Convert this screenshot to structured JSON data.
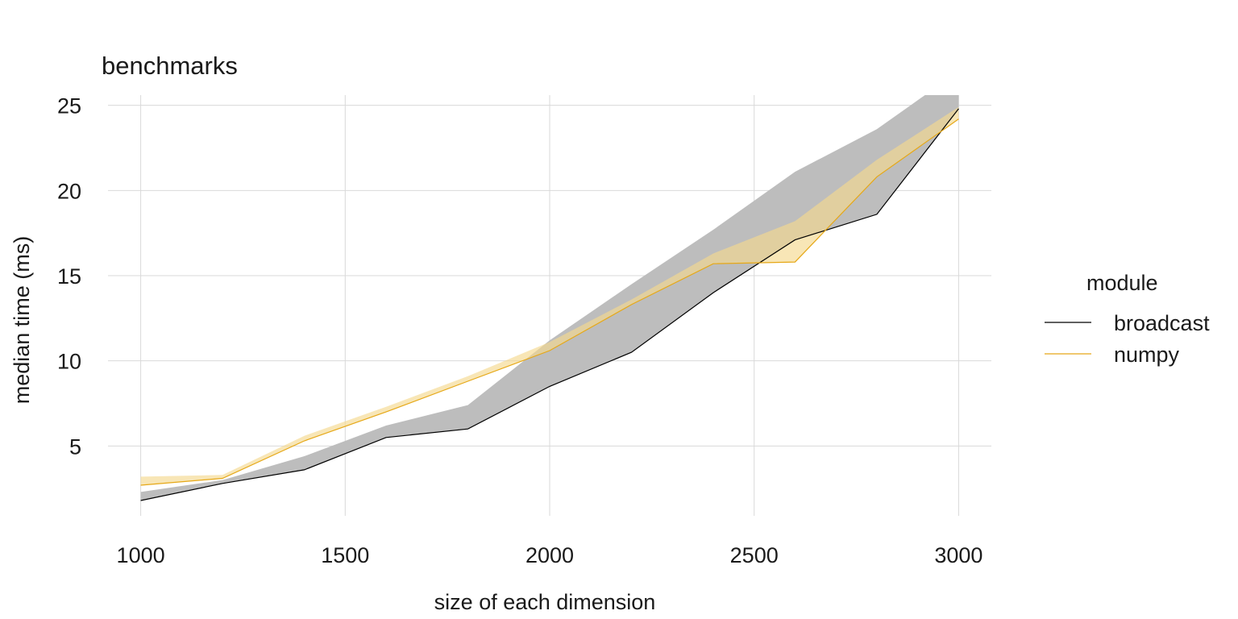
{
  "chart_data": {
    "type": "line",
    "title": "benchmarks",
    "xlabel": "size of each dimension",
    "ylabel": "median time (ms)",
    "xlim": [
      920,
      3080
    ],
    "ylim": [
      0.9,
      25.6
    ],
    "x_ticks": [
      1000,
      1500,
      2000,
      2500,
      3000
    ],
    "y_ticks": [
      5,
      10,
      15,
      20,
      25
    ],
    "grid": true,
    "legend": {
      "title": "module",
      "position": "right"
    },
    "series": [
      {
        "name": "broadcast",
        "color": "#000000",
        "band_color": "#bdbdbd",
        "x": [
          1000,
          1200,
          1400,
          1600,
          1800,
          2000,
          2200,
          2400,
          2600,
          2800,
          3000
        ],
        "y": [
          1.8,
          2.8,
          3.6,
          5.5,
          6.0,
          8.5,
          10.5,
          14.0,
          17.1,
          18.6,
          24.8
        ],
        "lower": [
          1.8,
          2.8,
          3.6,
          5.5,
          6.0,
          8.5,
          10.5,
          14.0,
          17.1,
          18.6,
          24.8
        ],
        "upper": [
          2.3,
          3.0,
          4.4,
          6.2,
          7.4,
          11.2,
          14.5,
          17.7,
          21.1,
          23.6,
          27.0
        ]
      },
      {
        "name": "numpy",
        "color": "#e6a817",
        "band_color": "#f5d98f",
        "x": [
          1000,
          1200,
          1400,
          1600,
          1800,
          2000,
          2200,
          2400,
          2600,
          2800,
          3000
        ],
        "y": [
          2.7,
          3.1,
          5.3,
          7.0,
          8.8,
          10.6,
          13.3,
          15.7,
          15.8,
          20.8,
          24.2
        ],
        "lower": [
          2.7,
          3.1,
          5.3,
          7.0,
          8.8,
          10.6,
          13.3,
          15.7,
          15.8,
          20.8,
          24.2
        ],
        "upper": [
          3.2,
          3.3,
          5.6,
          7.3,
          9.1,
          11.1,
          13.6,
          16.3,
          18.2,
          21.8,
          24.9
        ]
      }
    ]
  }
}
